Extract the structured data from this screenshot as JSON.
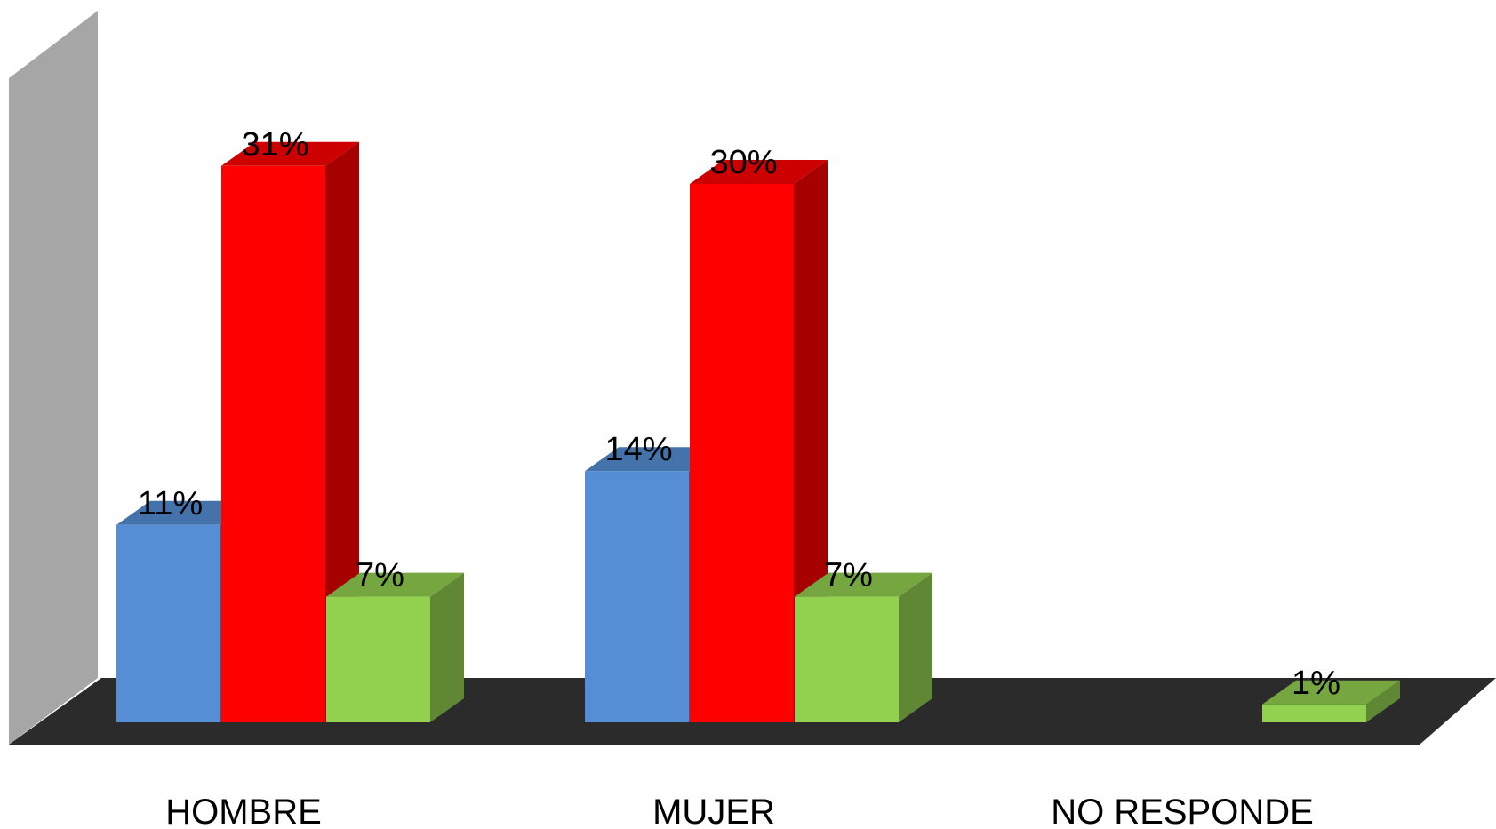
{
  "chart_data": {
    "type": "bar",
    "style": "3d-clustered-column",
    "title": "",
    "xlabel": "",
    "ylabel": "",
    "ylim": [
      0,
      35
    ],
    "grid": false,
    "legend": "none",
    "categories": [
      "HOMBRE",
      "MUJER",
      "NO RESPONDE"
    ],
    "series": [
      {
        "values": [
          11,
          14,
          null
        ],
        "labels": [
          "11%",
          "14%",
          ""
        ],
        "color": "#558ED5"
      },
      {
        "values": [
          31,
          30,
          null
        ],
        "labels": [
          "31%",
          "30%",
          ""
        ],
        "color": "#FF0000"
      },
      {
        "values": [
          7,
          7,
          1
        ],
        "labels": [
          "7%",
          "7%",
          "1%"
        ],
        "color": "#92D050"
      }
    ],
    "wall_color": "#A6A6A6",
    "floor_color": "#2B2B2B"
  }
}
